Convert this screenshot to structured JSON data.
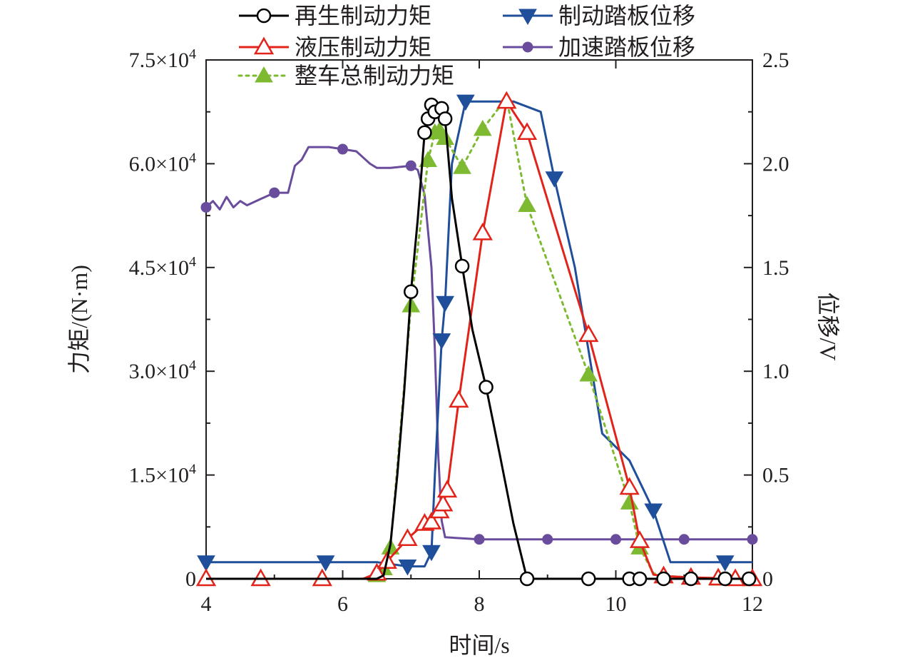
{
  "chart_data": {
    "type": "line",
    "x": {
      "label": "时间/s",
      "range": [
        4,
        12
      ],
      "ticks": [
        4,
        6,
        8,
        10,
        12
      ],
      "tick_labels": [
        "4",
        "6",
        "8",
        "10",
        "12"
      ]
    },
    "y_left": {
      "label": "力矩/(N·m)",
      "range": [
        0,
        75000
      ],
      "ticks": [
        0,
        15000,
        30000,
        45000,
        60000,
        75000
      ],
      "tick_labels": [
        "0",
        "1.5×10⁴",
        "3.0×10⁴",
        "4.5×10⁴",
        "6.0×10⁴",
        "7.5×10⁴"
      ]
    },
    "y_right": {
      "label": "位移/V",
      "range": [
        0,
        2.5
      ],
      "ticks": [
        0,
        0.5,
        1.0,
        1.5,
        2.0,
        2.5
      ],
      "tick_labels": [
        "0",
        "0.5",
        "1.0",
        "1.5",
        "2.0",
        "2.5"
      ]
    },
    "legend_position": "top",
    "series": [
      {
        "name": "再生制动力矩",
        "axis": "left",
        "color": "#000000",
        "marker": "circle-open",
        "line": "solid",
        "markers_x": [
          7.0,
          7.2,
          7.25,
          7.3,
          7.35,
          7.45,
          7.5,
          7.75,
          8.1,
          8.7,
          9.6,
          10.2,
          10.35,
          10.7,
          11.1,
          11.6,
          11.95
        ],
        "points": [
          [
            4.0,
            0
          ],
          [
            4.5,
            0
          ],
          [
            5.0,
            0
          ],
          [
            5.5,
            0
          ],
          [
            6.0,
            0
          ],
          [
            6.3,
            0
          ],
          [
            6.5,
            0
          ],
          [
            6.6,
            500
          ],
          [
            6.7,
            5000
          ],
          [
            6.8,
            15000
          ],
          [
            6.9,
            27000
          ],
          [
            7.0,
            41500
          ],
          [
            7.1,
            52000
          ],
          [
            7.2,
            64500
          ],
          [
            7.25,
            66500
          ],
          [
            7.3,
            68500
          ],
          [
            7.35,
            67500
          ],
          [
            7.45,
            68000
          ],
          [
            7.5,
            66500
          ],
          [
            7.6,
            55000
          ],
          [
            7.75,
            45200
          ],
          [
            7.9,
            36000
          ],
          [
            8.1,
            27700
          ],
          [
            8.3,
            18000
          ],
          [
            8.5,
            8000
          ],
          [
            8.7,
            0
          ],
          [
            9.0,
            0
          ],
          [
            9.6,
            0
          ],
          [
            10.2,
            0
          ],
          [
            10.35,
            0
          ],
          [
            10.7,
            0
          ],
          [
            11.1,
            0
          ],
          [
            11.6,
            0
          ],
          [
            11.95,
            0
          ],
          [
            12.0,
            0
          ]
        ]
      },
      {
        "name": "液压制动力矩",
        "axis": "left",
        "color": "#e2231a",
        "marker": "triangle-up-open",
        "line": "solid",
        "markers_x": [
          4.0,
          4.8,
          5.7,
          6.5,
          6.65,
          6.95,
          7.2,
          7.3,
          7.42,
          7.47,
          7.53,
          7.7,
          8.05,
          8.4,
          8.7,
          9.6,
          10.2,
          10.35,
          10.7,
          11.1,
          11.5,
          11.75,
          12.0
        ],
        "points": [
          [
            4.0,
            0
          ],
          [
            4.8,
            0
          ],
          [
            5.7,
            0
          ],
          [
            6.3,
            0
          ],
          [
            6.5,
            800
          ],
          [
            6.65,
            2500
          ],
          [
            6.95,
            5800
          ],
          [
            7.2,
            8000
          ],
          [
            7.3,
            8200
          ],
          [
            7.42,
            9800
          ],
          [
            7.47,
            10800
          ],
          [
            7.53,
            12800
          ],
          [
            7.7,
            25800
          ],
          [
            8.05,
            50000
          ],
          [
            8.4,
            69000
          ],
          [
            8.7,
            64500
          ],
          [
            9.6,
            35300
          ],
          [
            10.2,
            13200
          ],
          [
            10.35,
            5500
          ],
          [
            10.55,
            600
          ],
          [
            10.7,
            400
          ],
          [
            11.1,
            200
          ],
          [
            11.5,
            100
          ],
          [
            11.75,
            0
          ],
          [
            12.0,
            0
          ]
        ]
      },
      {
        "name": "整车总制动力矩",
        "axis": "left",
        "color": "#7dba31",
        "marker": "triangle-up-filled",
        "line": "dotted",
        "markers_x": [
          4.0,
          4.8,
          5.7,
          6.5,
          6.6,
          6.7,
          7.0,
          7.25,
          7.35,
          7.42,
          7.5,
          7.75,
          8.05,
          8.7,
          9.6,
          10.2,
          10.35,
          10.7,
          11.1,
          11.5,
          11.75,
          12.0
        ],
        "points": [
          [
            4.0,
            0
          ],
          [
            4.8,
            0
          ],
          [
            5.7,
            0
          ],
          [
            6.3,
            0
          ],
          [
            6.5,
            500
          ],
          [
            6.6,
            1500
          ],
          [
            6.7,
            4500
          ],
          [
            7.0,
            39500
          ],
          [
            7.25,
            60500
          ],
          [
            7.35,
            64500
          ],
          [
            7.42,
            64800
          ],
          [
            7.5,
            63700
          ],
          [
            7.75,
            59500
          ],
          [
            8.05,
            65000
          ],
          [
            8.4,
            69500
          ],
          [
            8.7,
            54000
          ],
          [
            9.6,
            29500
          ],
          [
            10.2,
            11000
          ],
          [
            10.35,
            4500
          ],
          [
            10.55,
            800
          ],
          [
            10.7,
            400
          ],
          [
            11.1,
            200
          ],
          [
            11.5,
            0
          ],
          [
            11.75,
            0
          ],
          [
            12.0,
            0
          ]
        ]
      },
      {
        "name": "制动踏板位移",
        "axis": "right",
        "color": "#1f4e9a",
        "marker": "triangle-down-filled",
        "line": "solid",
        "markers_x": [
          4.0,
          5.75,
          6.95,
          7.3,
          7.45,
          7.5,
          7.8,
          9.1,
          10.55,
          11.6
        ],
        "points": [
          [
            4.0,
            0.08
          ],
          [
            5.0,
            0.08
          ],
          [
            5.75,
            0.08
          ],
          [
            6.5,
            0.08
          ],
          [
            6.95,
            0.06
          ],
          [
            7.2,
            0.06
          ],
          [
            7.3,
            0.13
          ],
          [
            7.35,
            0.5
          ],
          [
            7.45,
            1.15
          ],
          [
            7.5,
            1.33
          ],
          [
            7.6,
            2.0
          ],
          [
            7.8,
            2.3
          ],
          [
            8.5,
            2.3
          ],
          [
            8.9,
            2.25
          ],
          [
            9.1,
            1.93
          ],
          [
            9.4,
            1.5
          ],
          [
            9.8,
            0.7
          ],
          [
            10.2,
            0.57
          ],
          [
            10.55,
            0.33
          ],
          [
            10.8,
            0.08
          ],
          [
            11.2,
            0.08
          ],
          [
            11.6,
            0.08
          ],
          [
            12.0,
            0.08
          ]
        ]
      },
      {
        "name": "加速踏板位移",
        "axis": "right",
        "color": "#6a4c9c",
        "marker": "circle-filled",
        "line": "solid",
        "markers_x": [
          4.0,
          5.0,
          6.0,
          7.0,
          8.0,
          9.0,
          10.0,
          11.0,
          12.0
        ],
        "points": [
          [
            4.0,
            1.79
          ],
          [
            4.1,
            1.82
          ],
          [
            4.2,
            1.78
          ],
          [
            4.3,
            1.84
          ],
          [
            4.4,
            1.79
          ],
          [
            4.5,
            1.82
          ],
          [
            4.6,
            1.8
          ],
          [
            4.8,
            1.83
          ],
          [
            5.0,
            1.86
          ],
          [
            5.2,
            1.86
          ],
          [
            5.3,
            1.99
          ],
          [
            5.4,
            2.02
          ],
          [
            5.5,
            2.08
          ],
          [
            5.6,
            2.08
          ],
          [
            5.8,
            2.08
          ],
          [
            6.0,
            2.07
          ],
          [
            6.2,
            2.06
          ],
          [
            6.3,
            2.03
          ],
          [
            6.4,
            2.0
          ],
          [
            6.5,
            1.98
          ],
          [
            6.7,
            1.98
          ],
          [
            7.0,
            1.99
          ],
          [
            7.1,
            1.97
          ],
          [
            7.2,
            1.85
          ],
          [
            7.3,
            1.5
          ],
          [
            7.35,
            1.1
          ],
          [
            7.4,
            0.6
          ],
          [
            7.45,
            0.28
          ],
          [
            7.5,
            0.2
          ],
          [
            8.0,
            0.19
          ],
          [
            9.0,
            0.19
          ],
          [
            10.0,
            0.19
          ],
          [
            11.0,
            0.19
          ],
          [
            12.0,
            0.19
          ]
        ]
      }
    ]
  }
}
